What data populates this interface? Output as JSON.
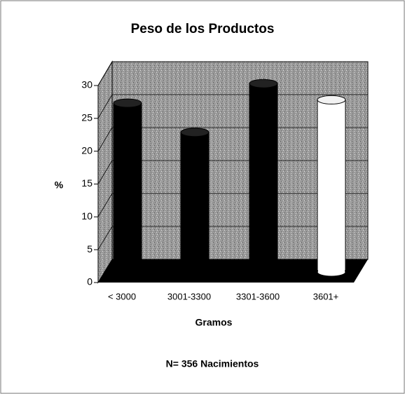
{
  "chart_data": {
    "type": "bar3d",
    "title": "Peso de los Productos",
    "xlabel": "Gramos",
    "ylabel": "%",
    "note": "N= 356 Nacimientos",
    "categories": [
      "< 3000",
      "3001-3300",
      "3301-3600",
      "3601+"
    ],
    "values": [
      26,
      21.5,
      29,
      26.5
    ],
    "colors": [
      "#000000",
      "#000000",
      "#000000",
      "#ffffff"
    ],
    "ylim": [
      0,
      30
    ],
    "yticks": [
      0,
      5,
      10,
      15,
      20,
      25,
      30
    ],
    "grid": true
  }
}
